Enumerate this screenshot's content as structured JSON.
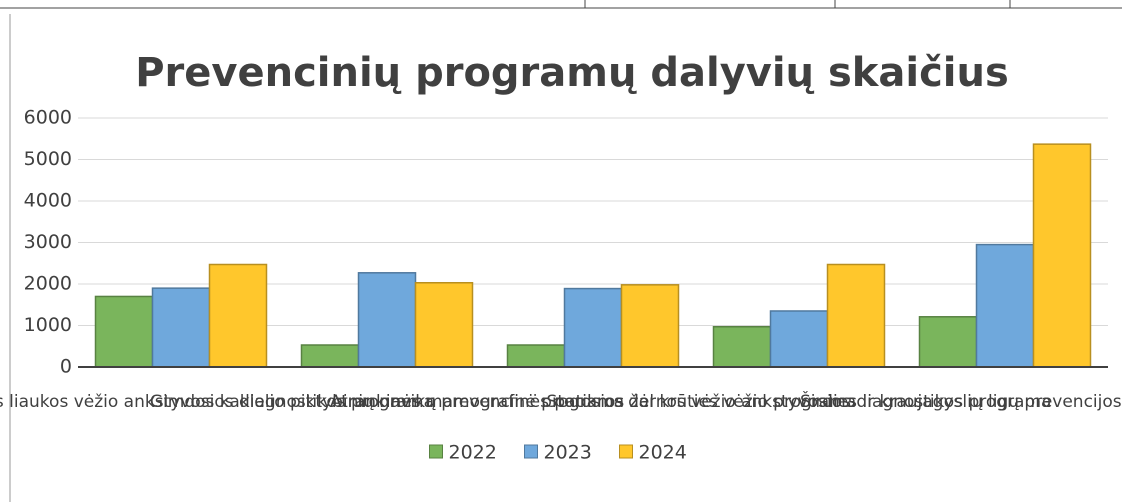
{
  "chart_data": {
    "type": "bar",
    "title": "Prevencinių programų dalyvių skaičius",
    "categories": [
      "Priešinės liaukos vėžio ankstyvosios diagnostikos programa",
      "Gimdos kaklelio piktybinių navikų prevencinė programa",
      "Atrankinės mamografinės patikros dėl krūties vėžio programa",
      "Storosios žarnos vėžio ankstyvosios diagnostikos programa",
      "Širdies ir kraujagyslių ligų prevencijos programa"
    ],
    "series": [
      {
        "name": "2022",
        "color": "#7ab55c",
        "values": [
          1700,
          530,
          530,
          970,
          1210
        ]
      },
      {
        "name": "2023",
        "color": "#6fa8dc",
        "values": [
          1900,
          2270,
          1890,
          1350,
          2950
        ]
      },
      {
        "name": "2024",
        "color": "#ffc72c",
        "values": [
          2470,
          2030,
          1980,
          2470,
          5370
        ]
      }
    ],
    "ylim": [
      0,
      6000
    ],
    "yticks": [
      0,
      1000,
      2000,
      3000,
      4000,
      5000,
      6000
    ],
    "grid": true,
    "legend": "bottom"
  }
}
